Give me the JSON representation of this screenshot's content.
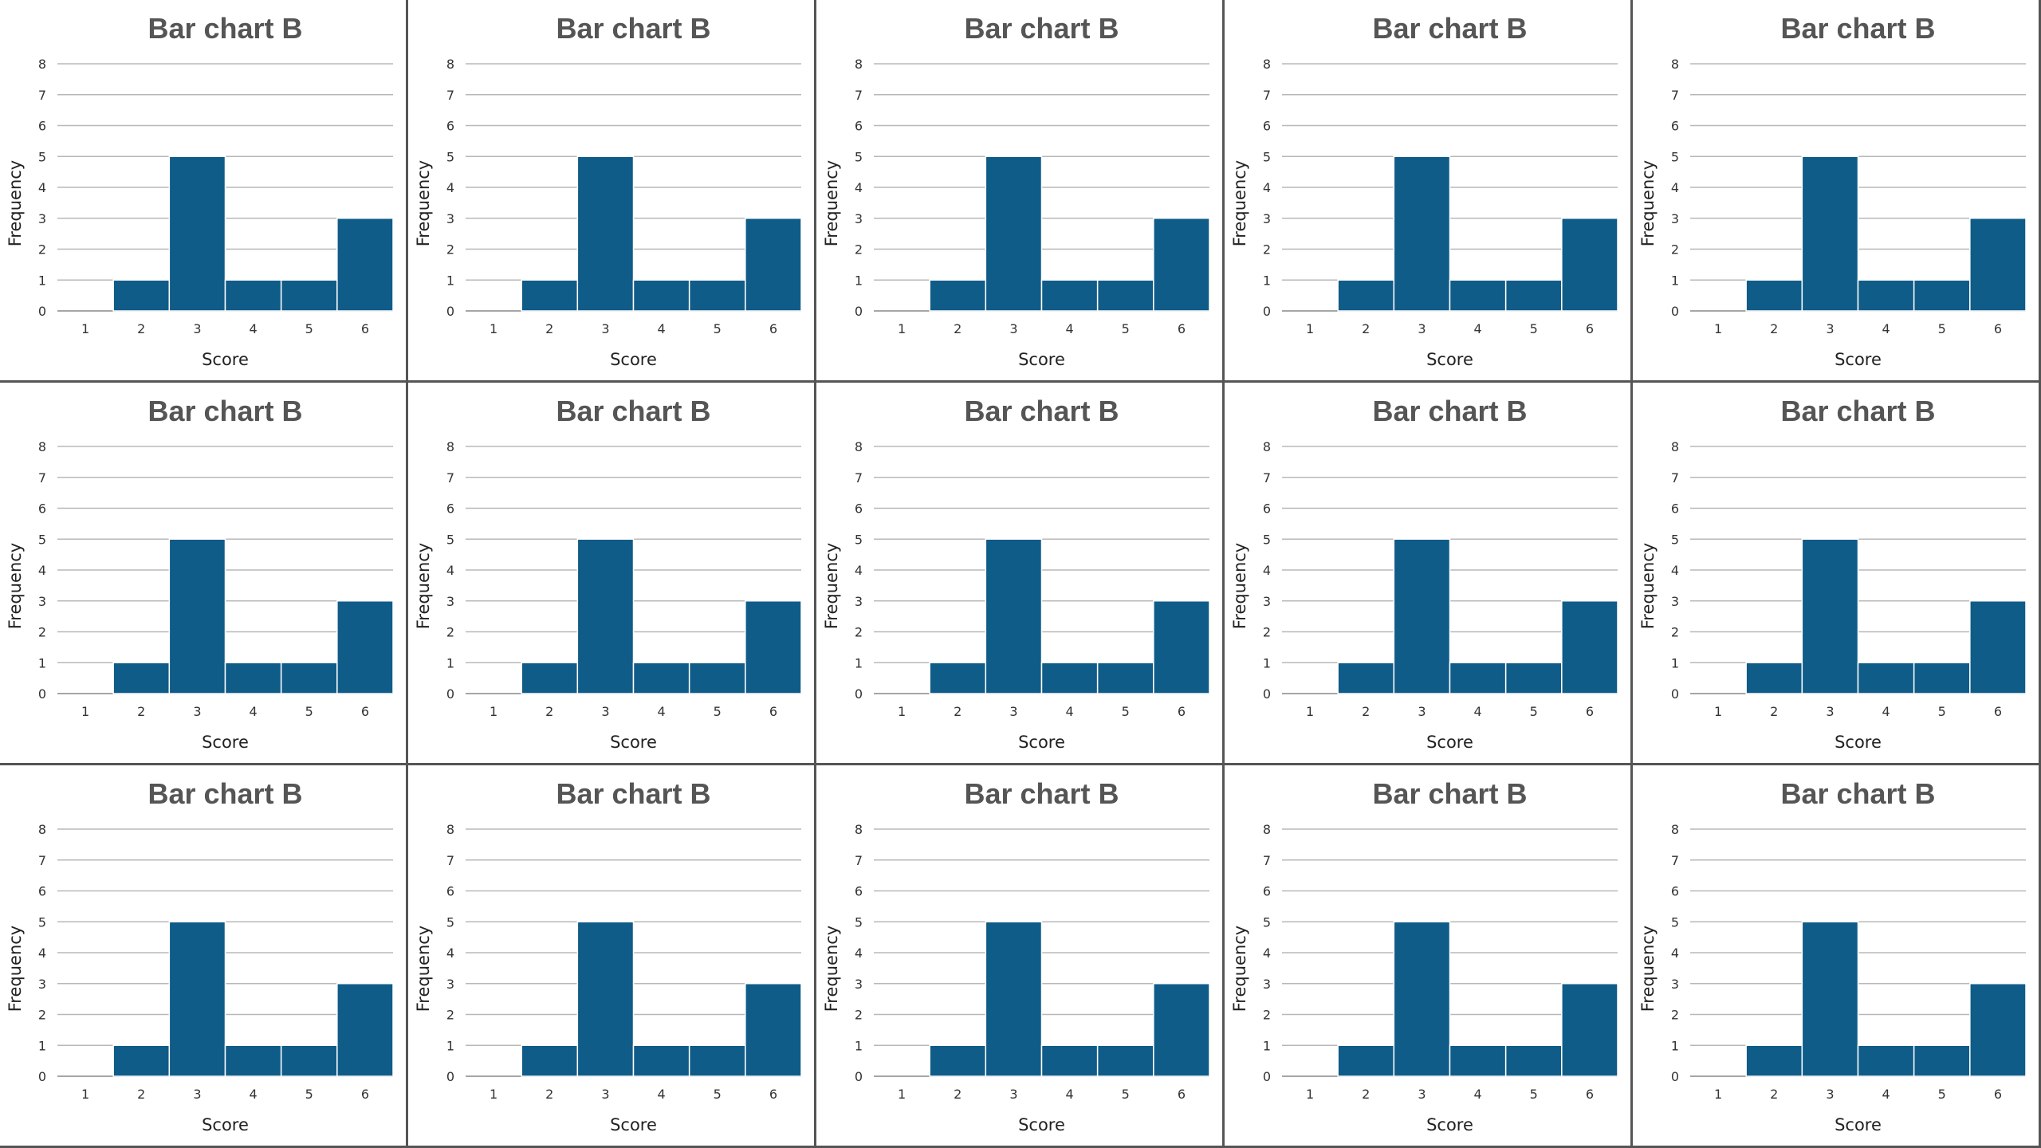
{
  "chart_data": [
    {
      "type": "bar",
      "title": "Bar chart B",
      "xlabel": "Score",
      "ylabel": "Frequency",
      "categories": [
        "1",
        "2",
        "3",
        "4",
        "5",
        "6"
      ],
      "values": [
        0,
        1,
        5,
        1,
        1,
        3
      ],
      "yticks": [
        "0",
        "1",
        "2",
        "3",
        "4",
        "5",
        "6",
        "7",
        "8"
      ],
      "ylim": [
        0,
        8
      ],
      "grid": true,
      "color": "#0f5c88"
    },
    {
      "type": "bar",
      "title": "Bar chart B",
      "xlabel": "Score",
      "ylabel": "Frequency",
      "categories": [
        "1",
        "2",
        "3",
        "4",
        "5",
        "6"
      ],
      "values": [
        0,
        1,
        5,
        1,
        1,
        3
      ],
      "yticks": [
        "0",
        "1",
        "2",
        "3",
        "4",
        "5",
        "6",
        "7",
        "8"
      ],
      "ylim": [
        0,
        8
      ],
      "grid": true,
      "color": "#0f5c88"
    },
    {
      "type": "bar",
      "title": "Bar chart B",
      "xlabel": "Score",
      "ylabel": "Frequency",
      "categories": [
        "1",
        "2",
        "3",
        "4",
        "5",
        "6"
      ],
      "values": [
        0,
        1,
        5,
        1,
        1,
        3
      ],
      "yticks": [
        "0",
        "1",
        "2",
        "3",
        "4",
        "5",
        "6",
        "7",
        "8"
      ],
      "ylim": [
        0,
        8
      ],
      "grid": true,
      "color": "#0f5c88"
    },
    {
      "type": "bar",
      "title": "Bar chart B",
      "xlabel": "Score",
      "ylabel": "Frequency",
      "categories": [
        "1",
        "2",
        "3",
        "4",
        "5",
        "6"
      ],
      "values": [
        0,
        1,
        5,
        1,
        1,
        3
      ],
      "yticks": [
        "0",
        "1",
        "2",
        "3",
        "4",
        "5",
        "6",
        "7",
        "8"
      ],
      "ylim": [
        0,
        8
      ],
      "grid": true,
      "color": "#0f5c88"
    },
    {
      "type": "bar",
      "title": "Bar chart B",
      "xlabel": "Score",
      "ylabel": "Frequency",
      "categories": [
        "1",
        "2",
        "3",
        "4",
        "5",
        "6"
      ],
      "values": [
        0,
        1,
        5,
        1,
        1,
        3
      ],
      "yticks": [
        "0",
        "1",
        "2",
        "3",
        "4",
        "5",
        "6",
        "7",
        "8"
      ],
      "ylim": [
        0,
        8
      ],
      "grid": true,
      "color": "#0f5c88"
    },
    {
      "type": "bar",
      "title": "Bar chart B",
      "xlabel": "Score",
      "ylabel": "Frequency",
      "categories": [
        "1",
        "2",
        "3",
        "4",
        "5",
        "6"
      ],
      "values": [
        0,
        1,
        5,
        1,
        1,
        3
      ],
      "yticks": [
        "0",
        "1",
        "2",
        "3",
        "4",
        "5",
        "6",
        "7",
        "8"
      ],
      "ylim": [
        0,
        8
      ],
      "grid": true,
      "color": "#0f5c88"
    },
    {
      "type": "bar",
      "title": "Bar chart B",
      "xlabel": "Score",
      "ylabel": "Frequency",
      "categories": [
        "1",
        "2",
        "3",
        "4",
        "5",
        "6"
      ],
      "values": [
        0,
        1,
        5,
        1,
        1,
        3
      ],
      "yticks": [
        "0",
        "1",
        "2",
        "3",
        "4",
        "5",
        "6",
        "7",
        "8"
      ],
      "ylim": [
        0,
        8
      ],
      "grid": true,
      "color": "#0f5c88"
    },
    {
      "type": "bar",
      "title": "Bar chart B",
      "xlabel": "Score",
      "ylabel": "Frequency",
      "categories": [
        "1",
        "2",
        "3",
        "4",
        "5",
        "6"
      ],
      "values": [
        0,
        1,
        5,
        1,
        1,
        3
      ],
      "yticks": [
        "0",
        "1",
        "2",
        "3",
        "4",
        "5",
        "6",
        "7",
        "8"
      ],
      "ylim": [
        0,
        8
      ],
      "grid": true,
      "color": "#0f5c88"
    },
    {
      "type": "bar",
      "title": "Bar chart B",
      "xlabel": "Score",
      "ylabel": "Frequency",
      "categories": [
        "1",
        "2",
        "3",
        "4",
        "5",
        "6"
      ],
      "values": [
        0,
        1,
        5,
        1,
        1,
        3
      ],
      "yticks": [
        "0",
        "1",
        "2",
        "3",
        "4",
        "5",
        "6",
        "7",
        "8"
      ],
      "ylim": [
        0,
        8
      ],
      "grid": true,
      "color": "#0f5c88"
    },
    {
      "type": "bar",
      "title": "Bar chart B",
      "xlabel": "Score",
      "ylabel": "Frequency",
      "categories": [
        "1",
        "2",
        "3",
        "4",
        "5",
        "6"
      ],
      "values": [
        0,
        1,
        5,
        1,
        1,
        3
      ],
      "yticks": [
        "0",
        "1",
        "2",
        "3",
        "4",
        "5",
        "6",
        "7",
        "8"
      ],
      "ylim": [
        0,
        8
      ],
      "grid": true,
      "color": "#0f5c88"
    },
    {
      "type": "bar",
      "title": "Bar chart B",
      "xlabel": "Score",
      "ylabel": "Frequency",
      "categories": [
        "1",
        "2",
        "3",
        "4",
        "5",
        "6"
      ],
      "values": [
        0,
        1,
        5,
        1,
        1,
        3
      ],
      "yticks": [
        "0",
        "1",
        "2",
        "3",
        "4",
        "5",
        "6",
        "7",
        "8"
      ],
      "ylim": [
        0,
        8
      ],
      "grid": true,
      "color": "#0f5c88"
    },
    {
      "type": "bar",
      "title": "Bar chart B",
      "xlabel": "Score",
      "ylabel": "Frequency",
      "categories": [
        "1",
        "2",
        "3",
        "4",
        "5",
        "6"
      ],
      "values": [
        0,
        1,
        5,
        1,
        1,
        3
      ],
      "yticks": [
        "0",
        "1",
        "2",
        "3",
        "4",
        "5",
        "6",
        "7",
        "8"
      ],
      "ylim": [
        0,
        8
      ],
      "grid": true,
      "color": "#0f5c88"
    },
    {
      "type": "bar",
      "title": "Bar chart B",
      "xlabel": "Score",
      "ylabel": "Frequency",
      "categories": [
        "1",
        "2",
        "3",
        "4",
        "5",
        "6"
      ],
      "values": [
        0,
        1,
        5,
        1,
        1,
        3
      ],
      "yticks": [
        "0",
        "1",
        "2",
        "3",
        "4",
        "5",
        "6",
        "7",
        "8"
      ],
      "ylim": [
        0,
        8
      ],
      "grid": true,
      "color": "#0f5c88"
    },
    {
      "type": "bar",
      "title": "Bar chart B",
      "xlabel": "Score",
      "ylabel": "Frequency",
      "categories": [
        "1",
        "2",
        "3",
        "4",
        "5",
        "6"
      ],
      "values": [
        0,
        1,
        5,
        1,
        1,
        3
      ],
      "yticks": [
        "0",
        "1",
        "2",
        "3",
        "4",
        "5",
        "6",
        "7",
        "8"
      ],
      "ylim": [
        0,
        8
      ],
      "grid": true,
      "color": "#0f5c88"
    },
    {
      "type": "bar",
      "title": "Bar chart B",
      "xlabel": "Score",
      "ylabel": "Frequency",
      "categories": [
        "1",
        "2",
        "3",
        "4",
        "5",
        "6"
      ],
      "values": [
        0,
        1,
        5,
        1,
        1,
        3
      ],
      "yticks": [
        "0",
        "1",
        "2",
        "3",
        "4",
        "5",
        "6",
        "7",
        "8"
      ],
      "ylim": [
        0,
        8
      ],
      "grid": true,
      "color": "#0f5c88"
    }
  ]
}
